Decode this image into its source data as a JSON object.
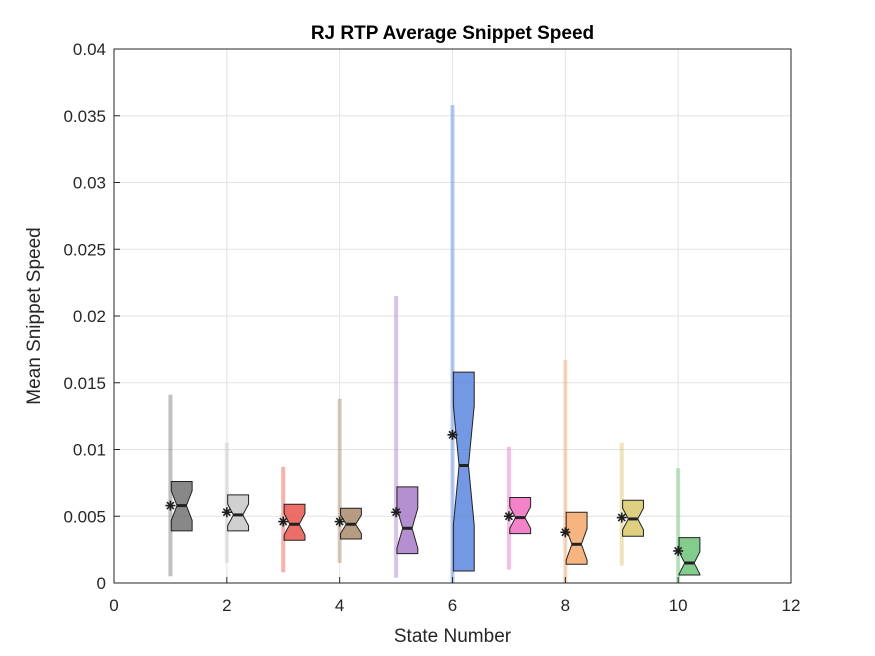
{
  "chart_data": {
    "type": "box",
    "title": "RJ  RTP Average Snippet Speed",
    "xlabel": "State Number",
    "ylabel": "Mean Snippet Speed",
    "xlim": [
      0,
      12
    ],
    "ylim": [
      0,
      0.04
    ],
    "xticks": [
      "0",
      "2",
      "4",
      "6",
      "8",
      "10",
      "12"
    ],
    "yticks": [
      "0",
      "0.005",
      "0.01",
      "0.015",
      "0.02",
      "0.025",
      "0.03",
      "0.035",
      "0.04"
    ],
    "grid": true,
    "boxes": [
      {
        "x": 1,
        "color": "#737373",
        "whisker_low": 0.0005,
        "whisker_high": 0.0141,
        "q1": 0.0039,
        "median": 0.0058,
        "q3": 0.0076,
        "mean": 0.0058
      },
      {
        "x": 2,
        "color": "#c8c8c8",
        "whisker_low": 0.0015,
        "whisker_high": 0.0105,
        "q1": 0.0039,
        "median": 0.0051,
        "q3": 0.0066,
        "mean": 0.0053
      },
      {
        "x": 3,
        "color": "#e8564e",
        "whisker_low": 0.0008,
        "whisker_high": 0.0087,
        "q1": 0.0032,
        "median": 0.0044,
        "q3": 0.0059,
        "mean": 0.0046
      },
      {
        "x": 4,
        "color": "#a98b6a",
        "whisker_low": 0.0015,
        "whisker_high": 0.0138,
        "q1": 0.0033,
        "median": 0.0044,
        "q3": 0.0056,
        "mean": 0.0046
      },
      {
        "x": 5,
        "color": "#a87cc8",
        "whisker_low": 0.0004,
        "whisker_high": 0.0215,
        "q1": 0.0022,
        "median": 0.0041,
        "q3": 0.0072,
        "mean": 0.0053
      },
      {
        "x": 6,
        "color": "#5b87e0",
        "whisker_low": 0.0,
        "whisker_high": 0.0358,
        "q1": 0.0009,
        "median": 0.0088,
        "q3": 0.0158,
        "mean": 0.0111
      },
      {
        "x": 7,
        "color": "#f06cc0",
        "whisker_low": 0.001,
        "whisker_high": 0.0102,
        "q1": 0.0037,
        "median": 0.0049,
        "q3": 0.0064,
        "mean": 0.005
      },
      {
        "x": 8,
        "color": "#f4a86a",
        "whisker_low": 0.0,
        "whisker_high": 0.0167,
        "q1": 0.0014,
        "median": 0.0029,
        "q3": 0.0053,
        "mean": 0.0038
      },
      {
        "x": 9,
        "color": "#d8c86a",
        "whisker_low": 0.0013,
        "whisker_high": 0.0105,
        "q1": 0.0035,
        "median": 0.0048,
        "q3": 0.0062,
        "mean": 0.0049
      },
      {
        "x": 10,
        "color": "#6cc478",
        "whisker_low": 0.0,
        "whisker_high": 0.0086,
        "q1": 0.0006,
        "median": 0.0015,
        "q3": 0.0034,
        "mean": 0.0024
      }
    ]
  }
}
